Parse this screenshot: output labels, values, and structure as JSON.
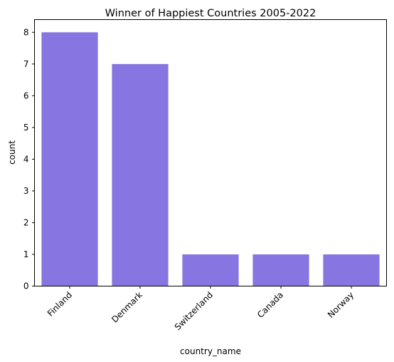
{
  "chart_data": {
    "type": "bar",
    "title": "Winner of Happiest Countries 2005-2022",
    "xlabel": "country_name",
    "ylabel": "count",
    "categories": [
      "Finland",
      "Denmark",
      "Switzerland",
      "Canada",
      "Norway"
    ],
    "values": [
      8,
      7,
      1,
      1,
      1
    ],
    "ylim": [
      0,
      8.4
    ],
    "yticks": [
      "0",
      "1",
      "2",
      "3",
      "4",
      "5",
      "6",
      "7",
      "8"
    ],
    "bar_color": "#8775e1",
    "grid": false
  }
}
